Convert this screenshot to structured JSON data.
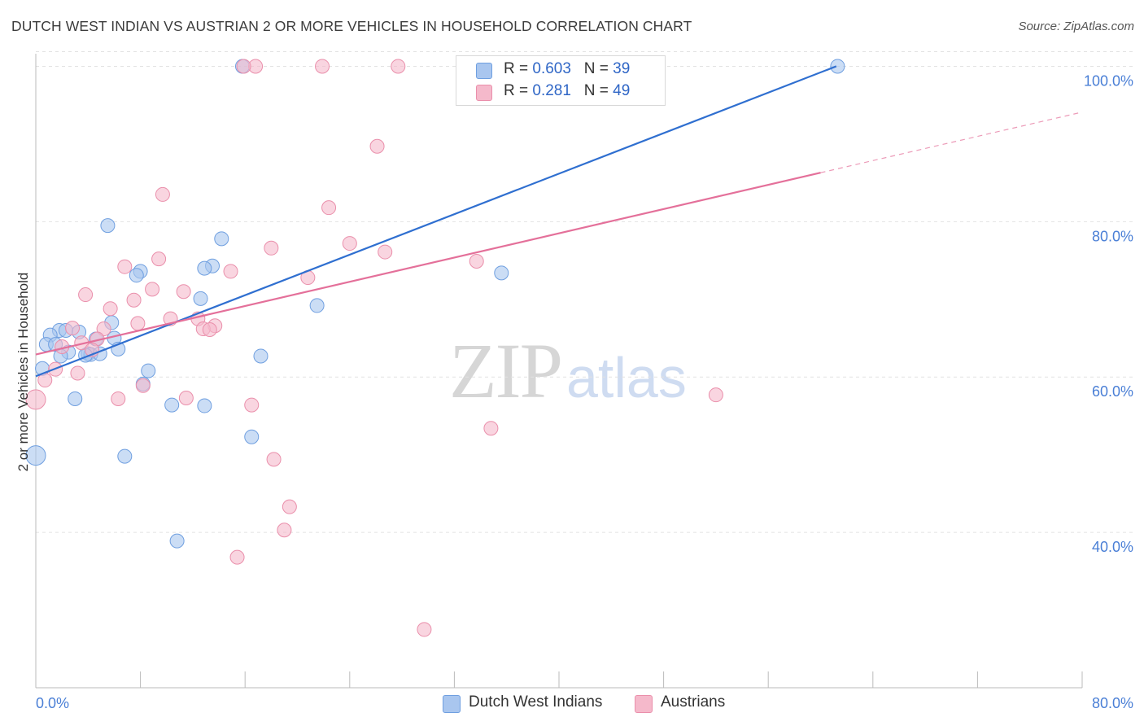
{
  "title": "DUTCH WEST INDIAN VS AUSTRIAN 2 OR MORE VEHICLES IN HOUSEHOLD CORRELATION CHART",
  "source": "Source: ZipAtlas.com",
  "watermark": {
    "zip": "ZIP",
    "atlas": "atlas"
  },
  "legend": {
    "rows": [
      {
        "r_label": "R =",
        "r_value": "0.603",
        "n_label": "N =",
        "n_value": "39",
        "color": "#a9c6ef"
      },
      {
        "r_label": "R =",
        "r_value": "0.281",
        "n_label": "N =",
        "n_value": "49",
        "color": "#f5b9cb"
      }
    ]
  },
  "bottom_legend": [
    {
      "label": "Dutch West Indians",
      "color": "#a9c6ef"
    },
    {
      "label": "Austrians",
      "color": "#f5b9cb"
    }
  ],
  "chart_data": {
    "type": "scatter",
    "title": "DUTCH WEST INDIAN VS AUSTRIAN 2 OR MORE VEHICLES IN HOUSEHOLD CORRELATION CHART",
    "xlabel": "",
    "ylabel": "2 or more Vehicles in Household",
    "xlim": [
      0,
      80
    ],
    "ylim": [
      20,
      102
    ],
    "x_tick_labels": [
      "0.0%",
      "80.0%"
    ],
    "y_ticks": [
      40,
      60,
      80,
      100
    ],
    "y_tick_labels": [
      "40.0%",
      "60.0%",
      "80.0%",
      "100.0%"
    ],
    "grid": true,
    "legend_position": "top-center",
    "series": [
      {
        "name": "Dutch West Indians",
        "color": "#a9c6ef",
        "stroke": "#6f9fe0",
        "trend": {
          "x": [
            0,
            61.2
          ],
          "y": [
            60.1,
            100.0
          ],
          "color": "#2f6fd0"
        },
        "points": [
          {
            "x": 15.8,
            "y": 100
          },
          {
            "x": 61.3,
            "y": 100
          },
          {
            "x": 5.5,
            "y": 79.5
          },
          {
            "x": 14.2,
            "y": 77.8
          },
          {
            "x": 13.5,
            "y": 74.3
          },
          {
            "x": 12.9,
            "y": 74.0
          },
          {
            "x": 8.0,
            "y": 73.6
          },
          {
            "x": 7.7,
            "y": 73.1
          },
          {
            "x": 35.6,
            "y": 73.4
          },
          {
            "x": 12.6,
            "y": 70.1
          },
          {
            "x": 21.5,
            "y": 69.2
          },
          {
            "x": 5.8,
            "y": 67.0
          },
          {
            "x": 1.8,
            "y": 66.0
          },
          {
            "x": 2.3,
            "y": 66.0
          },
          {
            "x": 3.3,
            "y": 65.8
          },
          {
            "x": 1.1,
            "y": 65.4
          },
          {
            "x": 4.6,
            "y": 64.9
          },
          {
            "x": 6.0,
            "y": 65.0
          },
          {
            "x": 0.8,
            "y": 64.2
          },
          {
            "x": 1.5,
            "y": 64.2
          },
          {
            "x": 6.3,
            "y": 63.6
          },
          {
            "x": 2.5,
            "y": 63.2
          },
          {
            "x": 1.9,
            "y": 62.7
          },
          {
            "x": 4.0,
            "y": 63.0
          },
          {
            "x": 4.2,
            "y": 62.9
          },
          {
            "x": 3.8,
            "y": 62.8
          },
          {
            "x": 4.9,
            "y": 63.0
          },
          {
            "x": 17.2,
            "y": 62.7
          },
          {
            "x": 0.5,
            "y": 61.1
          },
          {
            "x": 8.6,
            "y": 60.8
          },
          {
            "x": 8.2,
            "y": 59.1
          },
          {
            "x": 3.0,
            "y": 57.2
          },
          {
            "x": 10.4,
            "y": 56.4
          },
          {
            "x": 12.9,
            "y": 56.3
          },
          {
            "x": 16.5,
            "y": 52.3
          },
          {
            "x": 6.8,
            "y": 49.8
          },
          {
            "x": 0.0,
            "y": 49.9
          },
          {
            "x": 10.8,
            "y": 38.9
          },
          {
            "x": 35.0,
            "y": 100
          }
        ]
      },
      {
        "name": "Austrians",
        "color": "#f5b9cb",
        "stroke": "#ea8fab",
        "trend": {
          "x": [
            0,
            60.0
          ],
          "y": [
            62.9,
            86.3
          ],
          "dashed_to": [
            80,
            94.1
          ],
          "color": "#e4709a"
        },
        "points": [
          {
            "x": 16.8,
            "y": 100
          },
          {
            "x": 21.9,
            "y": 100
          },
          {
            "x": 27.7,
            "y": 100
          },
          {
            "x": 35.1,
            "y": 100
          },
          {
            "x": 41.4,
            "y": 100
          },
          {
            "x": 26.1,
            "y": 89.7
          },
          {
            "x": 9.7,
            "y": 83.5
          },
          {
            "x": 22.4,
            "y": 81.8
          },
          {
            "x": 24.0,
            "y": 77.2
          },
          {
            "x": 18.0,
            "y": 76.6
          },
          {
            "x": 26.7,
            "y": 76.1
          },
          {
            "x": 9.4,
            "y": 75.2
          },
          {
            "x": 33.7,
            "y": 74.9
          },
          {
            "x": 6.8,
            "y": 74.2
          },
          {
            "x": 14.9,
            "y": 73.6
          },
          {
            "x": 20.8,
            "y": 72.8
          },
          {
            "x": 8.9,
            "y": 71.3
          },
          {
            "x": 11.3,
            "y": 71.0
          },
          {
            "x": 3.8,
            "y": 70.6
          },
          {
            "x": 7.5,
            "y": 69.9
          },
          {
            "x": 5.7,
            "y": 68.8
          },
          {
            "x": 10.3,
            "y": 67.5
          },
          {
            "x": 12.4,
            "y": 67.5
          },
          {
            "x": 7.8,
            "y": 66.9
          },
          {
            "x": 13.7,
            "y": 66.6
          },
          {
            "x": 2.8,
            "y": 66.3
          },
          {
            "x": 5.2,
            "y": 66.2
          },
          {
            "x": 12.8,
            "y": 66.2
          },
          {
            "x": 13.3,
            "y": 66.1
          },
          {
            "x": 4.7,
            "y": 64.9
          },
          {
            "x": 3.5,
            "y": 64.4
          },
          {
            "x": 2.0,
            "y": 63.9
          },
          {
            "x": 4.3,
            "y": 63.5
          },
          {
            "x": 1.5,
            "y": 61.0
          },
          {
            "x": 3.2,
            "y": 60.5
          },
          {
            "x": 0.7,
            "y": 59.6
          },
          {
            "x": 8.2,
            "y": 58.9
          },
          {
            "x": 0.0,
            "y": 57.1
          },
          {
            "x": 6.3,
            "y": 57.2
          },
          {
            "x": 11.5,
            "y": 57.3
          },
          {
            "x": 52.0,
            "y": 57.7
          },
          {
            "x": 16.5,
            "y": 56.4
          },
          {
            "x": 34.8,
            "y": 53.4
          },
          {
            "x": 18.2,
            "y": 49.4
          },
          {
            "x": 19.4,
            "y": 43.3
          },
          {
            "x": 19.0,
            "y": 40.3
          },
          {
            "x": 15.4,
            "y": 36.8
          },
          {
            "x": 29.7,
            "y": 27.5
          },
          {
            "x": 15.9,
            "y": 100
          }
        ]
      }
    ]
  }
}
